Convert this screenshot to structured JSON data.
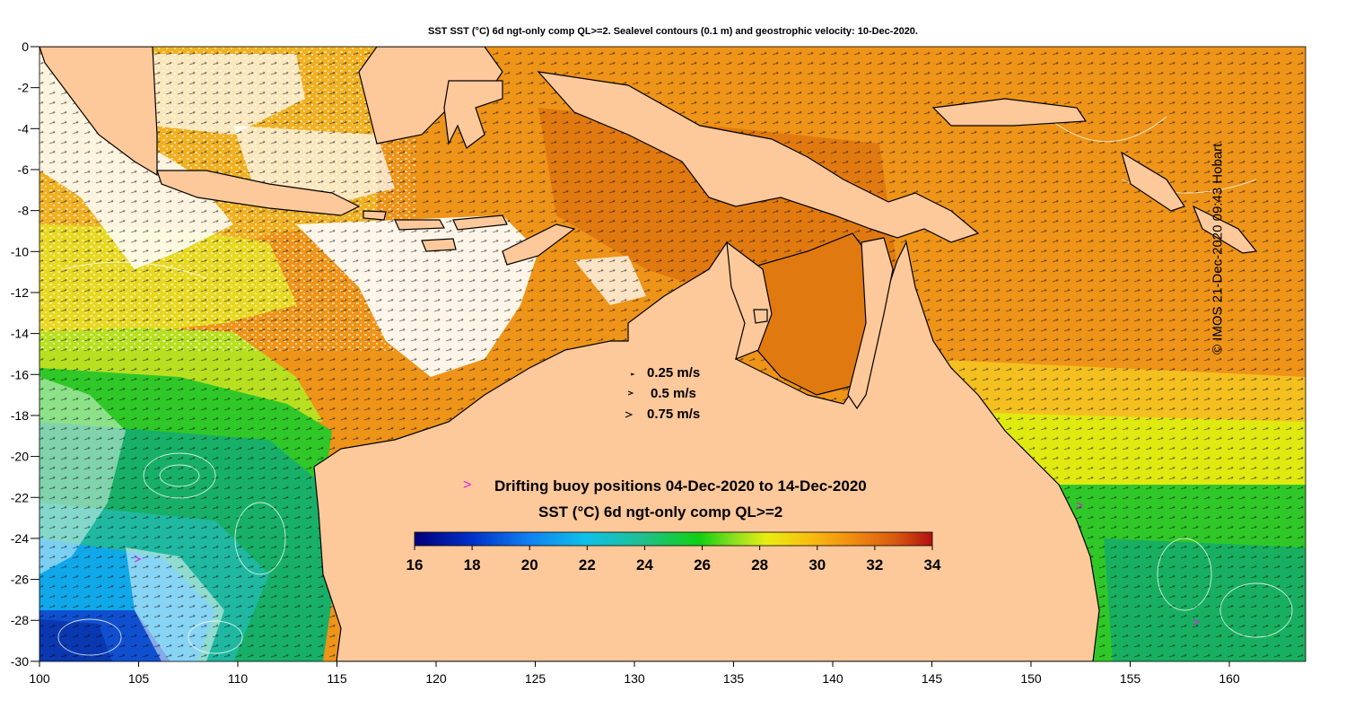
{
  "title": "SST SST (°C) 6d ngt-only comp QL>=2. Sealevel contours (0.1 m) and geostrophic velocity: 10-Dec-2020.",
  "copyright": "© IMOS 21-Dec-2020 09:43 Hobart",
  "axes": {
    "lon_ticks": [
      "100",
      "105",
      "110",
      "115",
      "120",
      "125",
      "130",
      "135",
      "140",
      "145",
      "150",
      "155",
      "160"
    ],
    "lat_ticks": [
      "0",
      "-2",
      "-4",
      "-6",
      "-8",
      "-10",
      "-12",
      "-14",
      "-16",
      "-18",
      "-20",
      "-22",
      "-24",
      "-26",
      "-28",
      "-30"
    ]
  },
  "velocity_legend": [
    "0.25 m/s",
    "0.5 m/s",
    "0.75 m/s"
  ],
  "buoy_legend": {
    "marker": ">",
    "label": "Drifting buoy positions 04-Dec-2020 to 14-Dec-2020",
    "marker_color": "#dd22dd"
  },
  "colorbar": {
    "title": "SST (°C) 6d ngt-only comp QL>=2",
    "ticks": [
      "16",
      "18",
      "20",
      "22",
      "24",
      "26",
      "28",
      "30",
      "32",
      "34"
    ],
    "range": [
      16,
      34
    ]
  },
  "colors": {
    "land": "#fdc89a",
    "cloud": "#ffffff",
    "sst_warm": "#ee9418",
    "sst_hot": "#e07a10",
    "sst_mid": "#f4c020",
    "sst_yellow": "#e0ea10",
    "sst_green": "#1cc020",
    "sst_teal": "#20b8a0",
    "sst_cyan": "#10a8e8",
    "sst_blue": "#1050d0"
  }
}
